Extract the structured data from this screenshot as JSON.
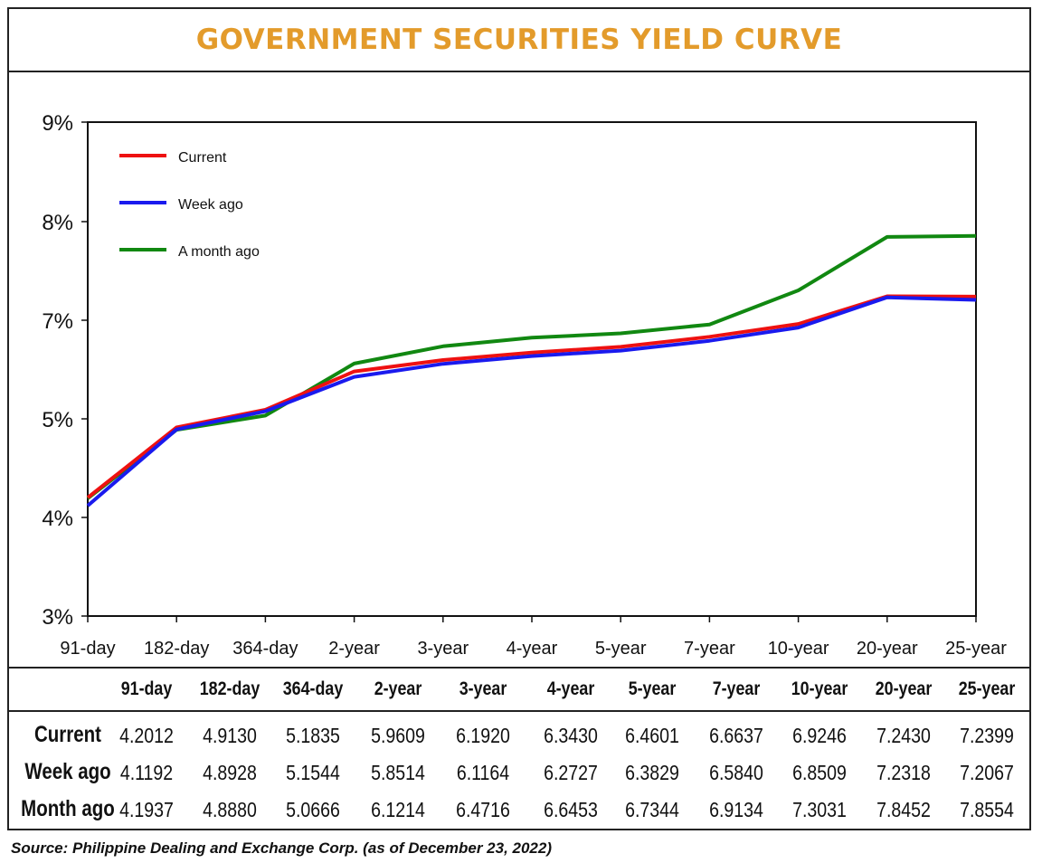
{
  "title": "GOVERNMENT SECURITIES YIELD CURVE",
  "source": "Source: Philippine Dealing and Exchange Corp. (as of December 23, 2022)",
  "colors": {
    "title": "#e39b2b",
    "current": "#ee1111",
    "week_ago": "#1a1aee",
    "month_ago": "#118811"
  },
  "chart_data": {
    "type": "line",
    "categories": [
      "91-day",
      "182-day",
      "364-day",
      "2-year",
      "3-year",
      "4-year",
      "5-year",
      "7-year",
      "10-year",
      "20-year",
      "25-year"
    ],
    "y_tick_labels": [
      "3%",
      "4%",
      "5%",
      "7%",
      "8%",
      "9%"
    ],
    "grid": false,
    "legend_position": "top-left",
    "series": [
      {
        "name": "Current",
        "color": "#ee1111",
        "values": [
          4.2012,
          4.913,
          5.1835,
          5.9609,
          6.192,
          6.343,
          6.4601,
          6.6637,
          6.9246,
          7.243,
          7.2399
        ]
      },
      {
        "name": "Week ago",
        "color": "#1a1aee",
        "values": [
          4.1192,
          4.8928,
          5.1544,
          5.8514,
          6.1164,
          6.2727,
          6.3829,
          6.584,
          6.8509,
          7.2318,
          7.2067
        ]
      },
      {
        "name": "A month ago",
        "color": "#118811",
        "values": [
          4.1937,
          4.888,
          5.0666,
          6.1214,
          6.4716,
          6.6453,
          6.7344,
          6.9134,
          7.3031,
          7.8452,
          7.8554
        ]
      }
    ]
  },
  "table": {
    "headers": [
      "91-day",
      "182-day",
      "364-day",
      "2-year",
      "3-year",
      "4-year",
      "5-year",
      "7-year",
      "10-year",
      "20-year",
      "25-year"
    ],
    "rows": [
      {
        "label": "Current",
        "values": [
          "4.2012",
          "4.9130",
          "5.1835",
          "5.9609",
          "6.1920",
          "6.3430",
          "6.4601",
          "6.6637",
          "6.9246",
          "7.2430",
          "7.2399"
        ]
      },
      {
        "label": "Week ago",
        "values": [
          "4.1192",
          "4.8928",
          "5.1544",
          "5.8514",
          "6.1164",
          "6.2727",
          "6.3829",
          "6.5840",
          "6.8509",
          "7.2318",
          "7.2067"
        ]
      },
      {
        "label": "Month ago",
        "values": [
          "4.1937",
          "4.8880",
          "5.0666",
          "6.1214",
          "6.4716",
          "6.6453",
          "6.7344",
          "6.9134",
          "7.3031",
          "7.8452",
          "7.8554"
        ]
      }
    ]
  }
}
